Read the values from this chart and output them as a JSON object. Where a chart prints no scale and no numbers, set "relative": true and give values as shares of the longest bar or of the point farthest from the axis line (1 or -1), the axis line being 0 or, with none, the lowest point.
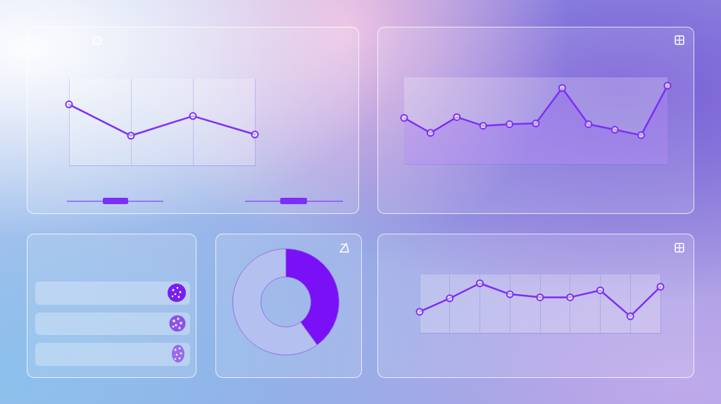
{
  "chart_data": [
    {
      "type": "line",
      "categories": [
        null,
        null,
        null,
        null
      ],
      "values": [
        1,
        0.49,
        0.81,
        0.51
      ],
      "color": "#7b2ff7",
      "relative": true,
      "grid": "x",
      "marker": "circle"
    },
    {
      "type": "area",
      "categories": [
        null,
        null,
        null,
        null,
        null,
        null,
        null,
        null,
        null,
        null,
        null
      ],
      "values": [
        0.59,
        0.4,
        0.6,
        0.49,
        0.51,
        0.52,
        0.97,
        0.51,
        0.44,
        0.37,
        1
      ],
      "color": "#7b2ff7",
      "relative": true,
      "marker": "circle"
    },
    {
      "type": "donut",
      "categories": [
        null,
        null
      ],
      "values": [
        40,
        60
      ],
      "colors": [
        "#7a10f5",
        "#b4c0f0"
      ]
    },
    {
      "type": "line",
      "categories": [
        null,
        null,
        null,
        null,
        null,
        null,
        null,
        null,
        null
      ],
      "values": [
        0.43,
        0.7,
        1,
        0.78,
        0.72,
        0.72,
        0.86,
        0.34,
        0.93
      ],
      "color": "#7b2ff7",
      "relative": true,
      "grid": "x",
      "marker": "circle"
    }
  ]
}
